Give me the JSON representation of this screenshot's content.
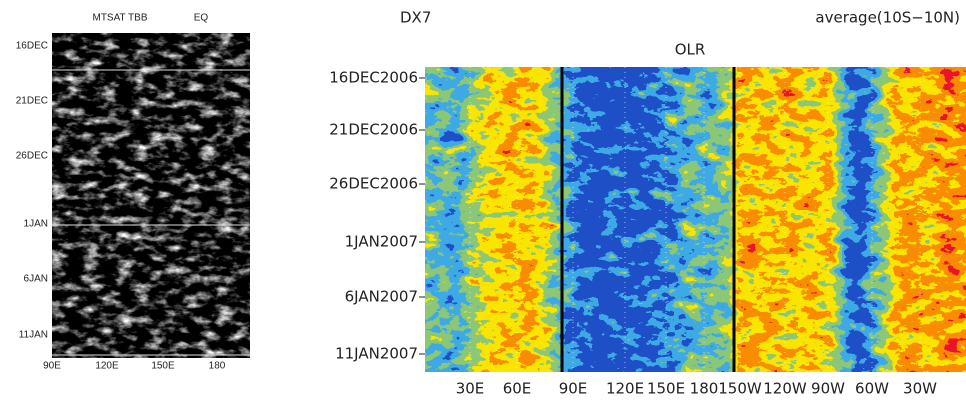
{
  "left_panel": {
    "title": "MTSAT TBB",
    "label": "EQ",
    "y_labels": [
      "16DEC",
      "21DEC",
      "26DEC",
      "1JAN",
      "6JAN",
      "11JAN"
    ],
    "x_labels": [
      "90E",
      "120E",
      "150E",
      "180"
    ]
  },
  "right_panel": {
    "model": "DX7",
    "region": "average(10S−10N)",
    "title": "OLR",
    "y_labels": [
      "16DEC2006",
      "21DEC2006",
      "26DEC2006",
      "1JAN2007",
      "6JAN2007",
      "11JAN2007"
    ],
    "x_labels": [
      "30E",
      "60E",
      "90E",
      "120E",
      "150E",
      "180",
      "150W",
      "120W",
      "90W",
      "60W",
      "30W"
    ]
  }
}
